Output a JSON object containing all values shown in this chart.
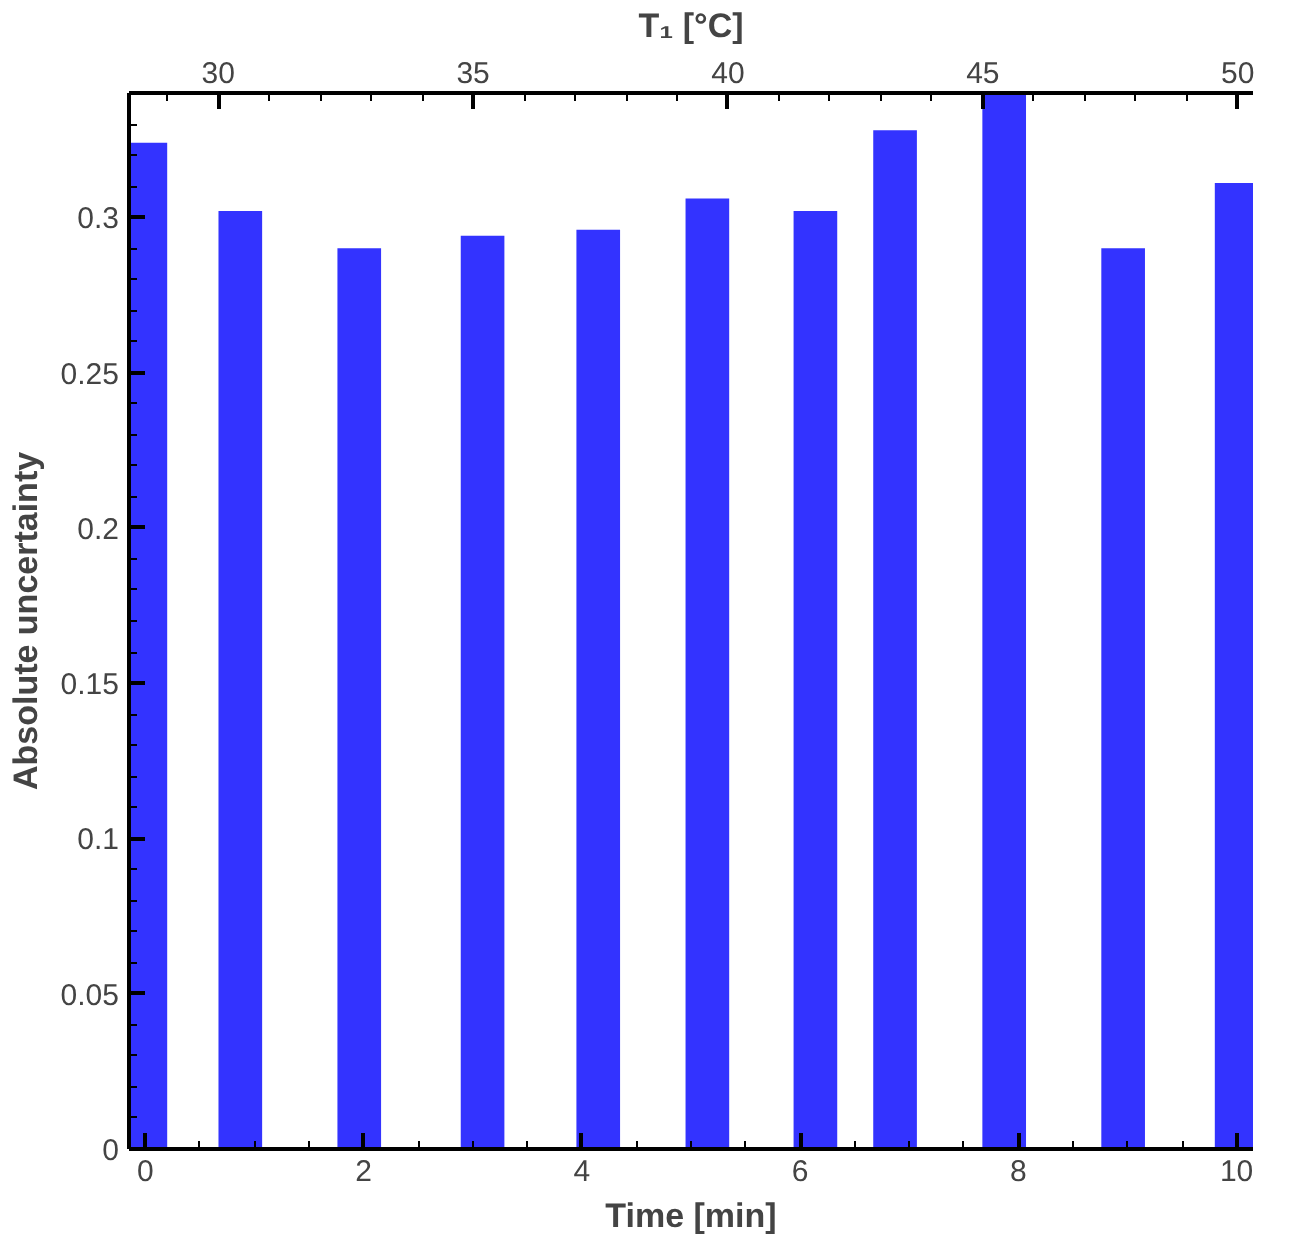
{
  "chart_data": {
    "type": "bar",
    "xlabel": "Time [min]",
    "ylabel": "Absolute uncertainty",
    "x2label": "T₁ [°C]",
    "x": [
      0,
      0.87,
      1.96,
      3.09,
      4.15,
      5.15,
      6.14,
      6.87,
      7.87,
      8.96,
      10.0
    ],
    "values": [
      0.324,
      0.302,
      0.29,
      0.294,
      0.296,
      0.306,
      0.302,
      0.328,
      0.34,
      0.29,
      0.311
    ],
    "color": "#3333ff",
    "xlim": [
      -0.15,
      10.15
    ],
    "xticks": [
      0,
      2,
      4,
      6,
      8,
      10
    ],
    "x2lim": [
      28.25,
      50.3
    ],
    "x2ticks": [
      30,
      35,
      40,
      45,
      50
    ],
    "ylim": [
      0,
      0.34
    ],
    "yticks": [
      0,
      0.05,
      0.1,
      0.15,
      0.2,
      0.25,
      0.3
    ],
    "grid": false
  }
}
